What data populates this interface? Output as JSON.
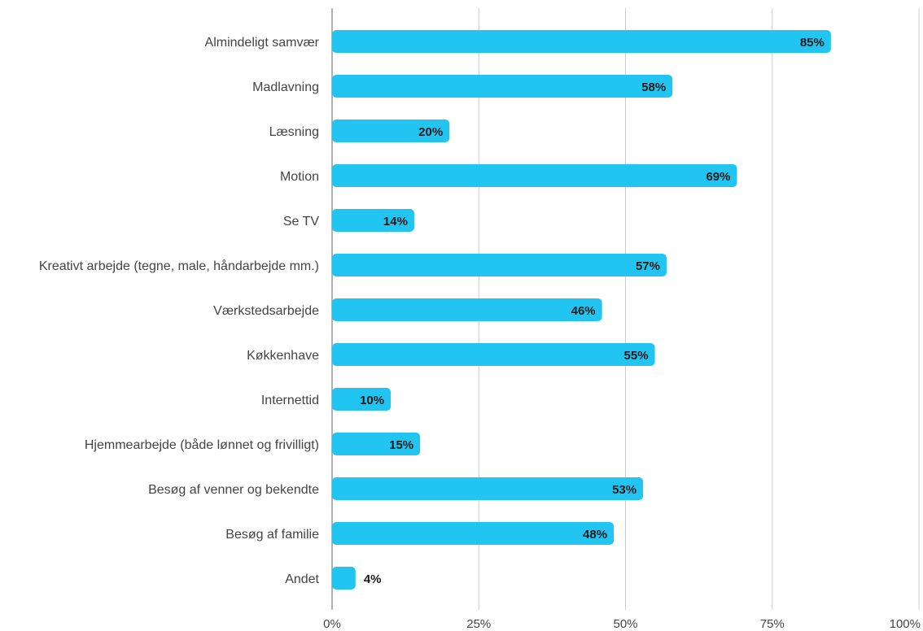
{
  "chart_data": {
    "type": "bar",
    "orientation": "horizontal",
    "categories": [
      "Almindeligt samvær",
      "Madlavning",
      "Læsning",
      "Motion",
      "Se TV",
      "Kreativt arbejde (tegne, male, håndarbejde mm.)",
      "Værkstedsarbejde",
      "Køkkenhave",
      "Internettid",
      "Hjemmearbejde (både lønnet og frivilligt)",
      "Besøg af venner og bekendte",
      "Besøg af familie",
      "Andet"
    ],
    "values": [
      85,
      58,
      20,
      69,
      14,
      57,
      46,
      55,
      10,
      15,
      53,
      48,
      4
    ],
    "data_labels": [
      "85%",
      "58%",
      "20%",
      "69%",
      "14%",
      "57%",
      "46%",
      "55%",
      "10%",
      "15%",
      "53%",
      "48%",
      "4%"
    ],
    "xlim": [
      0,
      100
    ],
    "xticks": [
      0,
      25,
      50,
      75,
      100
    ],
    "xtick_labels": [
      "0%",
      "25%",
      "50%",
      "75%",
      "100%"
    ],
    "grid": true,
    "legend": "none",
    "title": "",
    "xlabel": "",
    "ylabel": ""
  },
  "colors": {
    "bar": "#22c5f2",
    "grid": "#cccccc",
    "axis": "#999999"
  }
}
